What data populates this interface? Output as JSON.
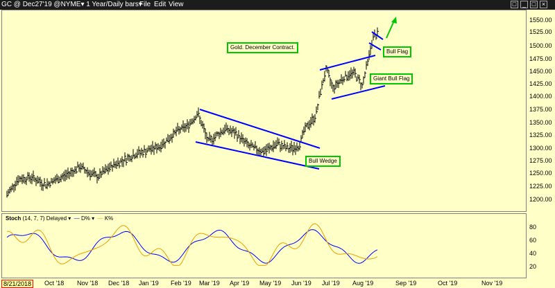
{
  "titlebar": {
    "ticker": "GC @ Dec27'19 @NYME▾ 1 Year/Daily bars▾",
    "menu_file": "File",
    "menu_edit": "Edit",
    "menu_view": "View"
  },
  "annotations": {
    "title_box": "Gold. December Contract.",
    "bull_flag": "Bull Flag",
    "giant_bull_flag": "Giant Bull Flag",
    "bull_wedge": "Bull Wedge"
  },
  "stoch": {
    "label_prefix": "Stoch",
    "params": "(14, 7, 7) Delayed",
    "d_label": "D%",
    "k_label": "K%"
  },
  "current_date": "8/21/2018",
  "colors": {
    "background": "#ffffc8",
    "price_bars": "#000000",
    "trendlines": "#0000ff",
    "annotation_border": "#00c800",
    "arrow": "#00c800",
    "d_line": "#0000ff",
    "k_line": "#e8a000"
  },
  "chart_data": [
    {
      "type": "ohlc",
      "title": "",
      "ylim": [
        1180,
        1560
      ],
      "y_ticks": [
        "1550.00",
        "1525.00",
        "1500.00",
        "1475.00",
        "1450.00",
        "1425.00",
        "1400.00",
        "1375.00",
        "1350.00",
        "1325.00",
        "1300.00",
        "1275.00",
        "1250.00",
        "1225.00",
        "1200.00"
      ],
      "x_ticks": [
        "Oct '18",
        "Nov '18",
        "Dec '18",
        "Jan '19",
        "Feb '19",
        "Mar '19",
        "Apr '19",
        "May '19",
        "Jun '19",
        "Jul '19",
        "Aug '19",
        "Sep '19",
        "Oct '19",
        "Nov '19"
      ],
      "series": [
        {
          "values_close_monthly_approx": [
            1215,
            1240,
            1250,
            1260,
            1280,
            1300,
            1345,
            1310,
            1300,
            1290,
            1410,
            1440,
            1535
          ]
        }
      ]
    },
    {
      "type": "line",
      "title": "",
      "ylim": [
        0,
        100
      ],
      "y_ticks": [
        "80",
        "60",
        "40",
        "20"
      ],
      "series": [
        {
          "name": "D%",
          "approx_range": [
            20,
            85
          ]
        },
        {
          "name": "K%",
          "approx_range": [
            15,
            95
          ]
        }
      ]
    }
  ]
}
